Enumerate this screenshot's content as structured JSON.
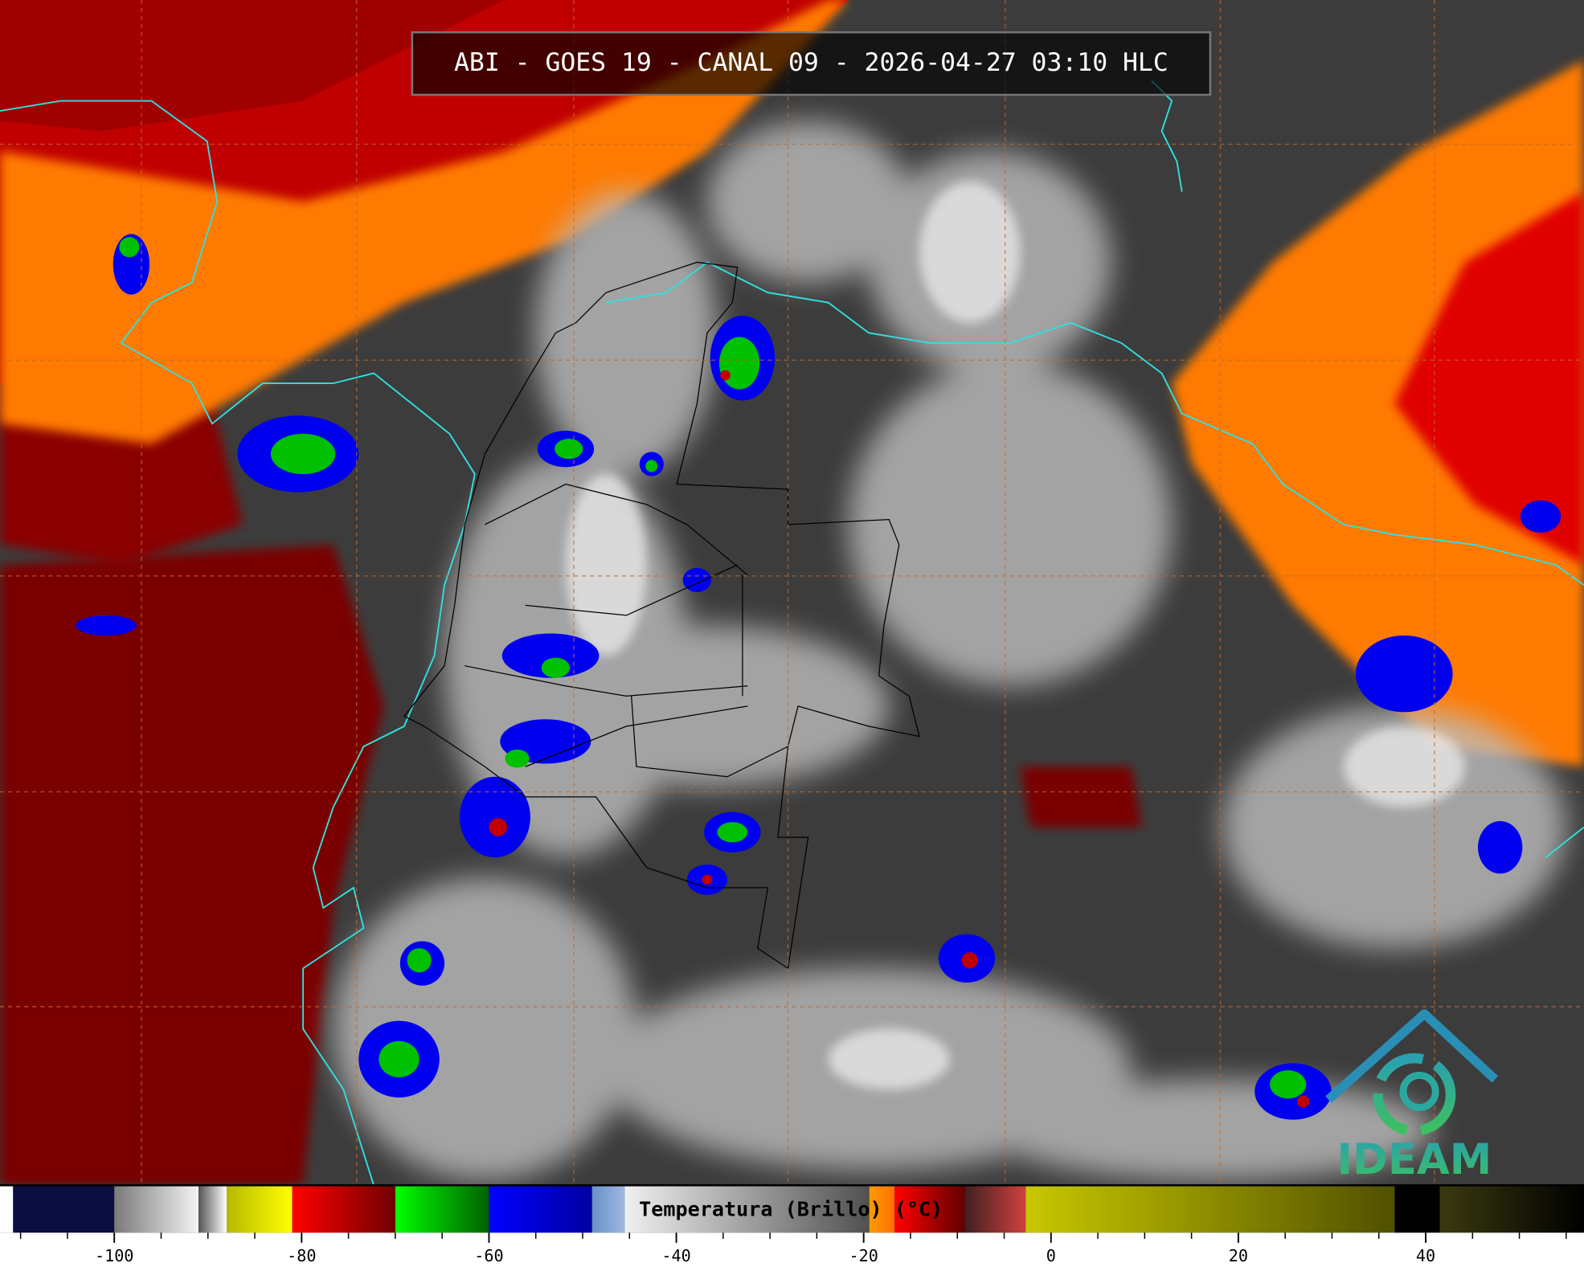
{
  "title": "ABI - GOES 19 - CANAL 09 - 2026-04-27 03:10 HLC",
  "logo": "IDEAM",
  "colorbar": {
    "label": "Temperatura (Brillo) (°C)",
    "xlim": [
      -112.2,
      56.9
    ],
    "xticks": [
      -100,
      -80,
      -60,
      -40,
      -20,
      0,
      20,
      40
    ],
    "minor_ticks": [
      -110,
      -105,
      -95,
      -90,
      -85,
      -75,
      -70,
      -65,
      -55,
      -50,
      -45,
      -35,
      -30,
      -25,
      -15,
      -10,
      -5,
      5,
      10,
      15,
      25,
      30,
      35,
      45,
      50,
      55
    ],
    "segments": [
      {
        "from": -112.2,
        "to": -110.8,
        "color": "#ffffff",
        "color_end": "#ffffff"
      },
      {
        "from": -110.8,
        "to": -100,
        "color": "#0a0f40",
        "color_end": "#0a0f40"
      },
      {
        "from": -100,
        "to": -91,
        "color": "#7a7a7a",
        "color_end": "#f4f4f4"
      },
      {
        "from": -91,
        "to": -88,
        "color": "#555555",
        "color_end": "#ffffff"
      },
      {
        "from": -88,
        "to": -81,
        "color": "#b8b800",
        "color_end": "#ffff00"
      },
      {
        "from": -81,
        "to": -70,
        "color": "#ff0000",
        "color_end": "#700000"
      },
      {
        "from": -70,
        "to": -60,
        "color": "#00ff00",
        "color_end": "#006000"
      },
      {
        "from": -60,
        "to": -49,
        "color": "#0000ff",
        "color_end": "#0000a0"
      },
      {
        "from": -49,
        "to": -45.5,
        "color": "#6a90c8",
        "color_end": "#a0b8e0"
      },
      {
        "from": -45.5,
        "to": -19.4,
        "color": "#f0f0f0",
        "color_end": "#505050"
      },
      {
        "from": -19.4,
        "to": -16.7,
        "color": "#ff9a00",
        "color_end": "#ff7000"
      },
      {
        "from": -16.7,
        "to": -9.2,
        "color": "#ff0000",
        "color_end": "#600000"
      },
      {
        "from": -9.2,
        "to": -2.7,
        "color": "#402020",
        "color_end": "#d04040"
      },
      {
        "from": -2.7,
        "to": 36.7,
        "color": "#c8c800",
        "color_end": "#505000"
      },
      {
        "from": 36.7,
        "to": 41.5,
        "color": "#000000",
        "color_end": "#000000"
      },
      {
        "from": 41.5,
        "to": 56.9,
        "color": "#3a3a10",
        "color_end": "#000000"
      }
    ]
  }
}
